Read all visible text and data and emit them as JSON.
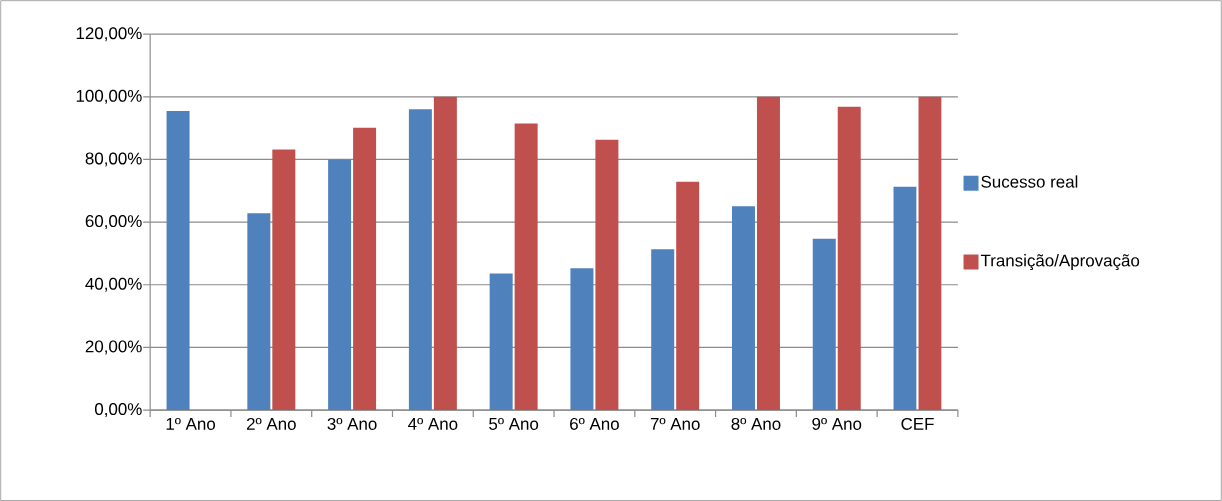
{
  "chart_data": {
    "type": "bar",
    "categories": [
      "1º Ano",
      "2º Ano",
      "3º Ano",
      "4º Ano",
      "5º Ano",
      "6º Ano",
      "7º Ano",
      "8º Ano",
      "9º Ano",
      "CEF"
    ],
    "series": [
      {
        "name": "Sucesso real",
        "color": "#4f81bd",
        "values": [
          95.5,
          62.8,
          80.0,
          96.0,
          43.6,
          45.3,
          51.3,
          65.1,
          54.7,
          71.3
        ]
      },
      {
        "name": "Transição/Aprovação",
        "color": "#c0504d",
        "values": [
          null,
          83.2,
          90.1,
          100,
          91.5,
          86.3,
          72.9,
          100,
          96.8,
          100
        ]
      }
    ],
    "ylim": [
      0,
      120
    ],
    "yticks": [
      {
        "value": 0,
        "label": "0,00%"
      },
      {
        "value": 20,
        "label": "20,00%"
      },
      {
        "value": 40,
        "label": "40,00%"
      },
      {
        "value": 60,
        "label": "60,00%"
      },
      {
        "value": 80,
        "label": "80,00%"
      },
      {
        "value": 100,
        "label": "100,00%"
      },
      {
        "value": 120,
        "label": "120,00%"
      }
    ],
    "grid": "y",
    "legend": "right"
  }
}
